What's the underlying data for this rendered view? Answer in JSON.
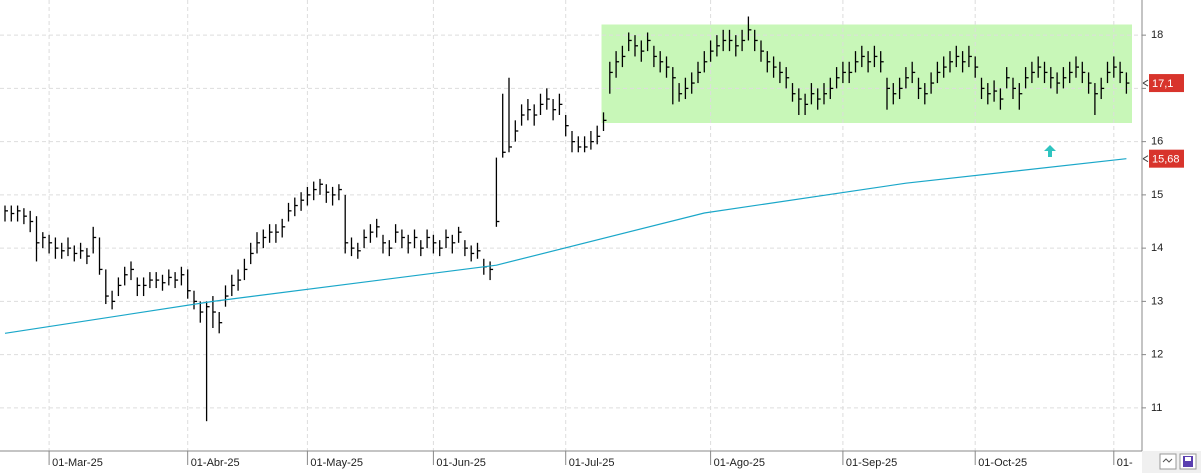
{
  "chart_data": {
    "type": "ohlc",
    "categories": [
      null,
      null,
      null,
      null,
      null,
      null,
      null,
      "01-Mar-25",
      null,
      null,
      null,
      null,
      null,
      null,
      null,
      null,
      null,
      null,
      null,
      null,
      null,
      null,
      null,
      null,
      null,
      null,
      null,
      null,
      null,
      "01-Abr-25",
      null,
      null,
      null,
      null,
      null,
      null,
      null,
      null,
      null,
      null,
      null,
      null,
      null,
      null,
      null,
      null,
      null,
      null,
      "01-May-25",
      null,
      null,
      null,
      null,
      null,
      null,
      null,
      null,
      null,
      null,
      null,
      null,
      null,
      null,
      null,
      null,
      null,
      null,
      null,
      "01-Jun-25",
      null,
      null,
      null,
      null,
      null,
      null,
      null,
      null,
      null,
      null,
      null,
      null,
      null,
      null,
      null,
      null,
      null,
      null,
      null,
      null,
      "01-Jul-25",
      null,
      null,
      null,
      null,
      null,
      null,
      null,
      null,
      null,
      null,
      null,
      null,
      null,
      null,
      null,
      null,
      null,
      null,
      null,
      null,
      null,
      null,
      "01-Ago-25",
      null,
      null,
      null,
      null,
      null,
      null,
      null,
      null,
      null,
      null,
      null,
      null,
      null,
      null,
      null,
      null,
      null,
      null,
      null,
      null,
      "01-Sep-25",
      null,
      null,
      null,
      null,
      null,
      null,
      null,
      null,
      null,
      null,
      null,
      null,
      null,
      null,
      null,
      null,
      null,
      null,
      null,
      null,
      "01-Oct-25",
      null,
      null,
      null,
      null,
      null,
      null,
      null,
      null,
      null,
      null,
      null,
      null,
      null,
      null,
      null,
      null,
      null,
      null,
      null,
      null,
      null,
      "01-",
      null,
      null
    ],
    "bars": [
      [
        14.8,
        14.5,
        14.7
      ],
      [
        14.8,
        14.5,
        14.65
      ],
      [
        14.8,
        14.5,
        14.7
      ],
      [
        14.75,
        14.45,
        14.6
      ],
      [
        14.7,
        14.3,
        14.5
      ],
      [
        14.6,
        13.75,
        14.1
      ],
      [
        14.3,
        14.0,
        14.2
      ],
      [
        14.25,
        13.9,
        14.1
      ],
      [
        14.2,
        13.8,
        14.0
      ],
      [
        14.1,
        13.8,
        13.95
      ],
      [
        14.2,
        13.85,
        14.0
      ],
      [
        14.05,
        13.75,
        13.9
      ],
      [
        14.1,
        13.8,
        13.95
      ],
      [
        14.0,
        13.7,
        13.85
      ],
      [
        14.4,
        13.9,
        14.2
      ],
      [
        14.2,
        13.5,
        13.6
      ],
      [
        13.6,
        12.95,
        13.1
      ],
      [
        13.2,
        12.85,
        13.0
      ],
      [
        13.45,
        13.1,
        13.3
      ],
      [
        13.65,
        13.3,
        13.5
      ],
      [
        13.75,
        13.4,
        13.6
      ],
      [
        13.45,
        13.1,
        13.3
      ],
      [
        13.45,
        13.1,
        13.3
      ],
      [
        13.55,
        13.25,
        13.4
      ],
      [
        13.55,
        13.25,
        13.4
      ],
      [
        13.5,
        13.2,
        13.35
      ],
      [
        13.6,
        13.3,
        13.45
      ],
      [
        13.55,
        13.25,
        13.4
      ],
      [
        13.65,
        13.3,
        13.5
      ],
      [
        13.6,
        13.05,
        13.2
      ],
      [
        13.2,
        12.85,
        13.0
      ],
      [
        13.0,
        12.6,
        12.8
      ],
      [
        13.0,
        10.75,
        12.9
      ],
      [
        13.1,
        12.5,
        12.8
      ],
      [
        12.8,
        12.4,
        12.6
      ],
      [
        13.3,
        12.9,
        13.1
      ],
      [
        13.5,
        13.1,
        13.3
      ],
      [
        13.6,
        13.2,
        13.4
      ],
      [
        13.8,
        13.4,
        13.6
      ],
      [
        14.1,
        13.7,
        13.9
      ],
      [
        14.3,
        13.9,
        14.1
      ],
      [
        14.35,
        14.0,
        14.2
      ],
      [
        14.45,
        14.1,
        14.3
      ],
      [
        14.45,
        14.1,
        14.3
      ],
      [
        14.55,
        14.2,
        14.4
      ],
      [
        14.85,
        14.5,
        14.7
      ],
      [
        14.95,
        14.6,
        14.8
      ],
      [
        15.05,
        14.7,
        14.9
      ],
      [
        15.15,
        14.8,
        15.0
      ],
      [
        15.25,
        14.9,
        15.1
      ],
      [
        15.3,
        15.0,
        15.2
      ],
      [
        15.2,
        14.85,
        15.05
      ],
      [
        15.15,
        14.8,
        15.0
      ],
      [
        15.2,
        14.9,
        15.1
      ],
      [
        15.0,
        13.9,
        14.1
      ],
      [
        14.2,
        13.85,
        14.0
      ],
      [
        14.1,
        13.8,
        13.95
      ],
      [
        14.35,
        14.0,
        14.2
      ],
      [
        14.45,
        14.1,
        14.3
      ],
      [
        14.55,
        14.2,
        14.4
      ],
      [
        14.25,
        13.9,
        14.1
      ],
      [
        14.15,
        13.85,
        14.0
      ],
      [
        14.45,
        14.1,
        14.3
      ],
      [
        14.35,
        14.0,
        14.2
      ],
      [
        14.25,
        13.9,
        14.1
      ],
      [
        14.35,
        14.0,
        14.2
      ],
      [
        14.15,
        13.85,
        14.0
      ],
      [
        14.35,
        14.0,
        14.2
      ],
      [
        14.25,
        13.9,
        14.1
      ],
      [
        14.15,
        13.85,
        14.0
      ],
      [
        14.35,
        14.0,
        14.2
      ],
      [
        14.25,
        13.9,
        14.1
      ],
      [
        14.4,
        14.1,
        14.3
      ],
      [
        14.15,
        13.85,
        14.0
      ],
      [
        14.05,
        13.75,
        13.9
      ],
      [
        14.1,
        13.8,
        13.95
      ],
      [
        13.8,
        13.5,
        13.65
      ],
      [
        13.75,
        13.4,
        13.6
      ],
      [
        15.7,
        14.4,
        14.5
      ],
      [
        16.9,
        15.7,
        15.8
      ],
      [
        17.2,
        15.8,
        15.9
      ],
      [
        16.4,
        16.0,
        16.2
      ],
      [
        16.7,
        16.3,
        16.5
      ],
      [
        16.8,
        16.4,
        16.6
      ],
      [
        16.7,
        16.3,
        16.5
      ],
      [
        16.9,
        16.5,
        16.7
      ],
      [
        17.0,
        16.6,
        16.8
      ],
      [
        16.8,
        16.4,
        16.6
      ],
      [
        16.9,
        16.5,
        16.7
      ],
      [
        16.5,
        16.1,
        16.3
      ],
      [
        16.2,
        15.8,
        16.0
      ],
      [
        16.1,
        15.8,
        15.9
      ],
      [
        16.1,
        15.8,
        15.9
      ],
      [
        16.2,
        15.85,
        16.0
      ],
      [
        16.3,
        15.95,
        16.1
      ],
      [
        16.55,
        16.2,
        16.4
      ],
      [
        17.5,
        16.9,
        17.3
      ],
      [
        17.7,
        17.2,
        17.5
      ],
      [
        17.8,
        17.4,
        17.6
      ],
      [
        18.05,
        17.7,
        17.9
      ],
      [
        18.0,
        17.6,
        17.8
      ],
      [
        17.9,
        17.5,
        17.7
      ],
      [
        18.05,
        17.7,
        17.9
      ],
      [
        17.8,
        17.4,
        17.6
      ],
      [
        17.7,
        17.3,
        17.5
      ],
      [
        17.6,
        17.2,
        17.4
      ],
      [
        17.4,
        16.7,
        17.2
      ],
      [
        17.1,
        16.75,
        16.9
      ],
      [
        17.2,
        16.8,
        17.0
      ],
      [
        17.3,
        16.9,
        17.1
      ],
      [
        17.5,
        17.1,
        17.3
      ],
      [
        17.7,
        17.3,
        17.5
      ],
      [
        17.9,
        17.5,
        17.7
      ],
      [
        18.0,
        17.6,
        17.8
      ],
      [
        18.1,
        17.7,
        17.9
      ],
      [
        18.1,
        17.7,
        17.9
      ],
      [
        18.0,
        17.6,
        17.8
      ],
      [
        18.1,
        17.7,
        17.9
      ],
      [
        18.35,
        17.9,
        18.1
      ],
      [
        18.1,
        17.7,
        17.9
      ],
      [
        17.9,
        17.5,
        17.7
      ],
      [
        17.7,
        17.3,
        17.5
      ],
      [
        17.6,
        17.2,
        17.4
      ],
      [
        17.5,
        17.1,
        17.3
      ],
      [
        17.4,
        17.0,
        17.2
      ],
      [
        17.1,
        16.75,
        16.9
      ],
      [
        17.0,
        16.5,
        16.8
      ],
      [
        16.9,
        16.5,
        16.7
      ],
      [
        17.1,
        16.7,
        16.9
      ],
      [
        17.0,
        16.6,
        16.8
      ],
      [
        17.1,
        16.7,
        16.9
      ],
      [
        17.2,
        16.8,
        17.0
      ],
      [
        17.4,
        17.0,
        17.2
      ],
      [
        17.5,
        17.1,
        17.3
      ],
      [
        17.5,
        17.1,
        17.3
      ],
      [
        17.7,
        17.3,
        17.5
      ],
      [
        17.8,
        17.4,
        17.6
      ],
      [
        17.7,
        17.3,
        17.5
      ],
      [
        17.8,
        17.4,
        17.6
      ],
      [
        17.7,
        17.3,
        17.5
      ],
      [
        17.2,
        16.6,
        17.0
      ],
      [
        17.1,
        16.7,
        16.9
      ],
      [
        17.2,
        16.8,
        17.0
      ],
      [
        17.4,
        17.0,
        17.2
      ],
      [
        17.5,
        17.1,
        17.3
      ],
      [
        17.2,
        16.8,
        17.0
      ],
      [
        17.1,
        16.7,
        16.9
      ],
      [
        17.3,
        16.9,
        17.1
      ],
      [
        17.5,
        17.1,
        17.3
      ],
      [
        17.6,
        17.2,
        17.4
      ],
      [
        17.7,
        17.3,
        17.5
      ],
      [
        17.8,
        17.4,
        17.6
      ],
      [
        17.7,
        17.3,
        17.5
      ],
      [
        17.8,
        17.4,
        17.6
      ],
      [
        17.6,
        17.2,
        17.4
      ],
      [
        17.2,
        16.8,
        17.0
      ],
      [
        17.1,
        16.7,
        16.9
      ],
      [
        17.15,
        16.75,
        16.95
      ],
      [
        17.0,
        16.6,
        16.8
      ],
      [
        17.4,
        17.0,
        17.2
      ],
      [
        17.2,
        16.8,
        17.0
      ],
      [
        17.1,
        16.6,
        16.9
      ],
      [
        17.4,
        17.0,
        17.2
      ],
      [
        17.5,
        17.1,
        17.3
      ],
      [
        17.6,
        17.2,
        17.4
      ],
      [
        17.5,
        17.1,
        17.3
      ],
      [
        17.4,
        17.0,
        17.2
      ],
      [
        17.3,
        16.9,
        17.1
      ],
      [
        17.4,
        17.0,
        17.2
      ],
      [
        17.5,
        17.1,
        17.3
      ],
      [
        17.6,
        17.2,
        17.4
      ],
      [
        17.5,
        17.1,
        17.3
      ],
      [
        17.3,
        16.9,
        17.1
      ],
      [
        17.1,
        16.5,
        16.9
      ],
      [
        17.2,
        16.8,
        17.0
      ],
      [
        17.5,
        17.1,
        17.3
      ],
      [
        17.6,
        17.2,
        17.4
      ],
      [
        17.5,
        17.1,
        17.3
      ],
      [
        17.3,
        16.9,
        17.1
      ]
    ],
    "bar_color": "#000000",
    "moving_average": {
      "color": "#1aa7c9",
      "x": [
        0,
        33,
        78,
        111,
        143,
        178
      ],
      "values": [
        12.4,
        13.0,
        13.68,
        14.66,
        15.22,
        15.68
      ]
    },
    "band": {
      "color": "#c8f7b8",
      "from": 16.35,
      "to": 18.2,
      "start_index": 95
    },
    "price_labels": [
      {
        "value": 17.1,
        "label": "17,1"
      },
      {
        "value": 15.68,
        "label": "15,68"
      }
    ],
    "label_color": "#d8342c",
    "ylim": [
      10.19,
      18.66
    ],
    "yticks": [
      11,
      12,
      13,
      14,
      15,
      16,
      17,
      18
    ],
    "grid": true
  }
}
